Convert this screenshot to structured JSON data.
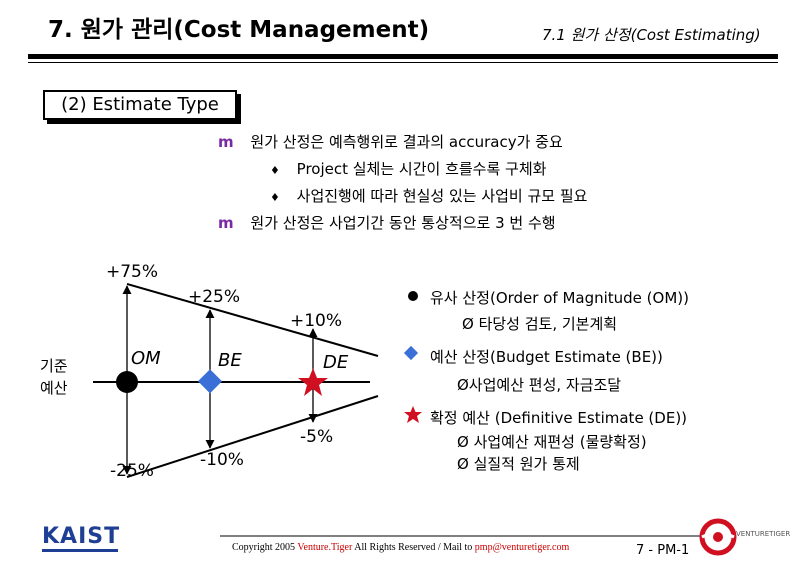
{
  "header": {
    "title": "7. 원가 관리(Cost Management)",
    "subtitle": "7.1 원가 산정(Cost Estimating)"
  },
  "section": {
    "label": "(2) Estimate Type"
  },
  "bullets": [
    {
      "level": 1,
      "text": "원가 산정은 예측행위로 결과의 accuracy가 중요"
    },
    {
      "level": 2,
      "text": "Project 실체는 시간이 흐를수록 구체화"
    },
    {
      "level": 2,
      "text": "사업진행에 따라 현실성 있는 사업비 규모 필요"
    },
    {
      "level": 1,
      "text": "원가 산정은 사업기간 동안 통상적으로 3 번 수행"
    }
  ],
  "diagram": {
    "baseline_label": [
      "기준",
      "예산"
    ],
    "stages": [
      {
        "label": "OM",
        "upper": "+75%",
        "lower": "-25%"
      },
      {
        "label": "BE",
        "upper": "+25%",
        "lower": "-10%"
      },
      {
        "label": "DE",
        "upper": "+10%",
        "lower": "-5%"
      }
    ],
    "colors": {
      "om": "#000000",
      "be": "#3a6fd8",
      "de": "#d01020"
    }
  },
  "legend": [
    {
      "marker": "circle",
      "color": "#000000",
      "title": "유사 산정(Order of Magnitude (OM))",
      "detail": "Ø 타당성 검토, 기본계획"
    },
    {
      "marker": "diamond",
      "color": "#3a6fd8",
      "title": "예산 산정(Budget Estimate (BE))",
      "detail": "Ø사업예산 편성, 자금조달"
    },
    {
      "marker": "star",
      "color": "#d01020",
      "title": "확정 예산 (Definitive Estimate (DE))",
      "detail": "Ø 사업예산 재편성 (물량확정)",
      "detail2": "Ø 실질적 원가 통제"
    }
  ],
  "footer": {
    "copyright_prefix": "Copyright 2005 ",
    "brand": "Venture.Tiger",
    "copyright_mid": " All Rights Reserved / Mail to ",
    "email": "pmp@venturetiger.com",
    "logo_left": "KAIST",
    "logo_right": "VENTURETIGER",
    "page": "7 - PM-1"
  }
}
